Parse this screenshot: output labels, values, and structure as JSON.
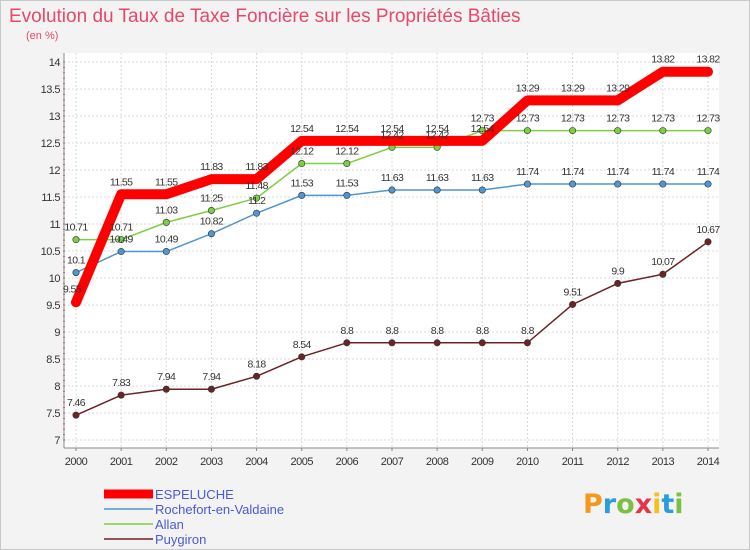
{
  "chart_data": {
    "type": "line",
    "title": "Evolution du Taux de Taxe Foncière sur les Propriétés Bâties",
    "subtitle": "(en %)",
    "x": [
      "2000",
      "2001",
      "2002",
      "2003",
      "2004",
      "2005",
      "2006",
      "2007",
      "2008",
      "2009",
      "2010",
      "2011",
      "2012",
      "2013",
      "2014"
    ],
    "ylim": [
      7,
      14
    ],
    "yticks": [
      "7",
      "7.5",
      "8",
      "8.5",
      "9",
      "9.5",
      "10",
      "10.5",
      "11",
      "11.5",
      "12",
      "12.5",
      "13",
      "13.5",
      "14"
    ],
    "grid": true,
    "series": [
      {
        "name": "ESPELUCHE",
        "color": "#ff0000",
        "values": [
          9.55,
          11.55,
          11.55,
          11.83,
          11.83,
          12.54,
          12.54,
          12.54,
          12.54,
          12.54,
          13.29,
          13.29,
          13.29,
          13.82,
          13.82
        ],
        "labels": [
          "9.55",
          "11.55",
          "11.55",
          "11.83",
          "11.83",
          "12.54",
          "12.54",
          "12.54",
          "12.54",
          "12.54",
          "13.29",
          "13.29",
          "13.29",
          "13.82",
          "13.82"
        ]
      },
      {
        "name": "Rochefort-en-Valdaine",
        "color": "#4f96d2",
        "values": [
          10.1,
          10.49,
          10.49,
          10.82,
          11.2,
          11.53,
          11.53,
          11.63,
          11.63,
          11.63,
          11.74,
          11.74,
          11.74,
          11.74,
          11.74
        ],
        "labels": [
          "10.1",
          "10.49",
          "10.49",
          "10.82",
          "11.2",
          "11.53",
          "11.53",
          "11.63",
          "11.63",
          "11.63",
          "11.74",
          "11.74",
          "11.74",
          "11.74",
          "11.74"
        ]
      },
      {
        "name": "Allan",
        "color": "#7ccf42",
        "values": [
          10.71,
          10.71,
          11.03,
          11.25,
          11.48,
          12.12,
          12.12,
          12.42,
          12.42,
          12.73,
          12.73,
          12.73,
          12.73,
          12.73,
          12.73
        ],
        "labels": [
          "10.71",
          "10.71",
          "11.03",
          "11.25",
          "11.48",
          "12.12",
          "12.12",
          "12.42",
          "12.42",
          "12.73",
          "12.73",
          "12.73",
          "12.73",
          "12.73",
          "12.73"
        ]
      },
      {
        "name": "Puygiron",
        "color": "#6b2326",
        "values": [
          7.46,
          7.83,
          7.94,
          7.94,
          8.18,
          8.54,
          8.8,
          8.8,
          8.8,
          8.8,
          8.8,
          9.51,
          9.9,
          10.07,
          10.67
        ],
        "labels": [
          "7.46",
          "7.83",
          "7.94",
          "7.94",
          "8.18",
          "8.54",
          "8.8",
          "8.8",
          "8.8",
          "8.8",
          "8.8",
          "9.51",
          "9.9",
          "10.07",
          "10.67"
        ]
      }
    ],
    "legend": [
      "ESPELUCHE",
      "Rochefort-en-Valdaine",
      "Allan",
      "Puygiron"
    ]
  },
  "logo": {
    "letters": [
      "P",
      "r",
      "o",
      "x",
      "i",
      "t",
      "i"
    ],
    "colors": [
      "#f39a1e",
      "#2a9de0",
      "#7cc043",
      "#e5354a",
      "#f3c21b",
      "#2a9de0",
      "#7cc043"
    ]
  }
}
